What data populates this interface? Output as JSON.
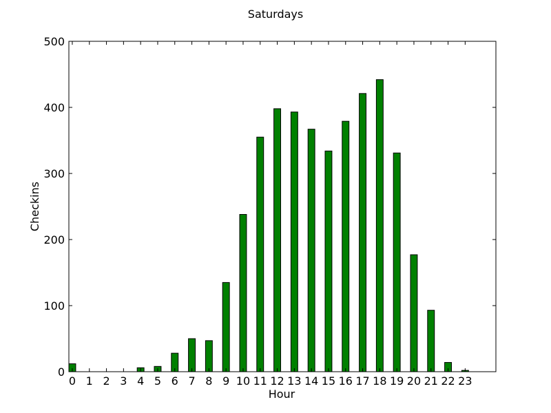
{
  "chart_data": {
    "type": "bar",
    "title": "Saturdays",
    "xlabel": "Hour",
    "ylabel": "Checkins",
    "categories": [
      "0",
      "1",
      "2",
      "3",
      "4",
      "5",
      "6",
      "7",
      "8",
      "9",
      "10",
      "11",
      "12",
      "13",
      "14",
      "15",
      "16",
      "17",
      "18",
      "19",
      "20",
      "21",
      "22",
      "23"
    ],
    "values": [
      12,
      0,
      0,
      0,
      6,
      8,
      28,
      50,
      47,
      135,
      238,
      355,
      398,
      393,
      367,
      334,
      379,
      421,
      442,
      331,
      177,
      93,
      14,
      2
    ],
    "xlim": [
      0,
      25
    ],
    "ylim": [
      0,
      500
    ],
    "yticks": [
      0,
      100,
      200,
      300,
      400,
      500
    ],
    "grid": false,
    "colors": {
      "bar_fill": "#008000",
      "bar_stroke": "#000000"
    }
  }
}
